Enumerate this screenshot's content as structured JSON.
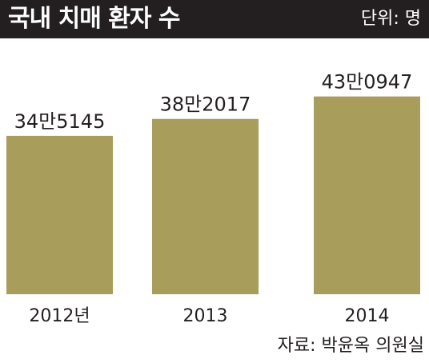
{
  "header": {
    "title": "국내 치매 환자 수",
    "unit": "단위: 명"
  },
  "source": "자료: 박윤옥 의원실",
  "colors": {
    "header_bg": "#231f20",
    "bar": "#a99d5b",
    "text": "#231f20"
  },
  "chart_data": {
    "type": "bar",
    "title": "국내 치매 환자 수",
    "xlabel": "",
    "ylabel": "",
    "categories": [
      "2012년",
      "2013",
      "2014"
    ],
    "values": [
      345145,
      382017,
      430947
    ],
    "data_labels": [
      "34만5145",
      "38만2017",
      "43만0947"
    ],
    "unit": "명",
    "grid": false,
    "legend": "none"
  }
}
